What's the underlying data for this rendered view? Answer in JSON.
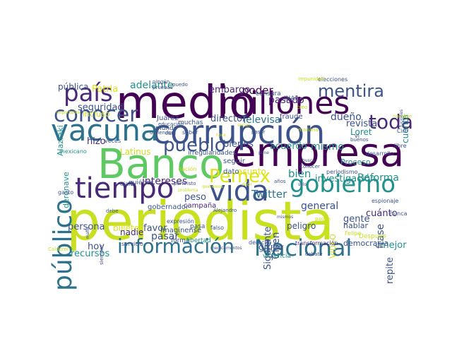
{
  "palette": {
    "purple": "#440154",
    "indigo": "#3b528b",
    "teal": "#21918c",
    "sea": "#2c728e",
    "green": "#5ec962",
    "lime": "#c8e020",
    "yellow": "#dde318",
    "plum": "#482878"
  },
  "words": {
    "periodista": "periodista",
    "empresa": "empresa",
    "corrupcion": "corrupción",
    "medio": "medio",
    "millones": "millones",
    "banco": "Banco",
    "vacuna": "vacuna",
    "tiempo": "tiempo",
    "vida": "vida",
    "gobierno": "gobierno",
    "informacion": "información",
    "nacional": "Nacional",
    "conocer": "conocer",
    "pais": "país",
    "publico": "público",
    "pueblo": "pueblo",
    "pemex": "Pemex",
    "toda": "toda",
    "mentira": "mentira",
    "adelante": "adelante",
    "patria": "Patria",
    "publica": "pública",
    "seguridad": "seguridad",
    "incluso": "incluso",
    "poder": "poder",
    "pasado": "pasado",
    "embargo": "embargo",
    "director": "director",
    "televisa": "Televisa",
    "dueno": "dueño",
    "revista": "revista",
    "loret": "Loret",
    "cuenta": "cuenta",
    "mismo": "mismo",
    "acuerdo": "acuerdo",
    "bienes": "bienes",
    "bien": "bien",
    "reforma": "Reforma",
    "investigacion": "investigación",
    "general": "general",
    "cuanto": "cuánto",
    "mejor": "mejor",
    "frase": "frase",
    "repite": "repite",
    "gente": "gente",
    "hablar": "hablar",
    "democracia": "democracia",
    "twitter": "Twitter",
    "siguiente": "Siguiente",
    "peligro": "peligro",
    "grupo": "grupo",
    "cisen": "Cisen",
    "video": "VIDEO",
    "intereses": "intereses",
    "persona": "persona",
    "billetes": "billetes",
    "favor": "favor",
    "nadie": "nadie",
    "hoy": "hoy",
    "recursos": "recursos",
    "pasar": "pasar",
    "peso": "peso",
    "hizo": "hizo",
    "latinus": "Latinus",
    "alazraki": "Alazraki",
    "deronave": "deronave",
    "asunto": "asunto",
    "proceso": "Proceso",
    "dato": "dato",
    "seguir": "seguir",
    "campana": "campaña",
    "gobernador": "gobernador",
    "imaginense": "Imagínense",
    "expresion": "expresión",
    "forma": "forma",
    "libertad": "libertad",
    "servicio": "servicio",
    "violencia": "violencia",
    "derecho": "derecho",
    "transformacion": "transformación",
    "despues": "Después",
    "felipe": "Felipe",
    "nunca": "nunca",
    "espionaje": "espionaje",
    "libre": "libre",
    "desarrollo": "desarrollo",
    "ciro": "Ciro",
    "nombre": "nombre",
    "inai": "INAI",
    "fraude": "fraude",
    "censura": "censura",
    "intelectuales": "intelectuales",
    "elecciones": "elecciones",
    "impunidad": "impunidad",
    "irregularidades": "irregularidades",
    "juarez": "Juárez",
    "muchas": "muchas",
    "mundo": "mundo",
    "quienes": "quiénes",
    "ojala": "ojalá",
    "mexicano": "mexicano",
    "gasto": "gasto",
    "calderon": "Calderón",
    "saber": "saber",
    "veces": "veces",
    "nacion": "nación",
    "pasa": "pasa",
    "falso": "falso",
    "pagan": "pagan",
    "debate": "debate",
    "periodismo": "periodismo",
    "conocer_small": "Conocer",
    "siempre": "siempre",
    "debe": "debe",
    "pruebas": "pruebas",
    "puedo": "puedo",
    "ningun": "ningún",
    "alejandro": "Alejandro",
    "porfiristo": "porfiristo",
    "defiender": "defiender",
    "educacion": "educación",
    "importante": "importante",
    "pasar_small": "pasar",
    "medicamentos": "medicamentos",
    "anos": "años",
    "creo": "creo",
    "buenos": "buenos",
    "vi": "vi",
    "manana": "mañana",
    "tomar": "tomar",
    "fuciones": "fuciones",
    "busca": "busca",
    "pone": "pone",
    "queremos": "queremos",
    "social": "social",
    "mafia": "mafia",
    "mismos": "mismos",
    "problema": "problema",
    "hora": "hora",
    "solo": "solo",
    "decir": "decir",
    "claro": "claro"
  }
}
